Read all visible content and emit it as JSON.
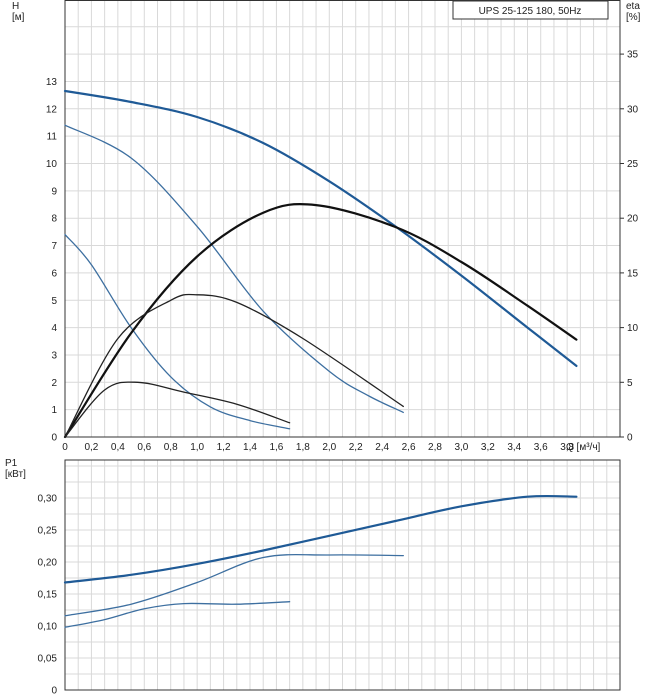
{
  "chart_data": [
    {
      "type": "line",
      "title": "UPS 25-125 180, 50Hz",
      "xlabel": "Q [м³/ч]",
      "ylabel": "H\n[м]",
      "y2label": "eta\n[%]",
      "xlim": [
        0,
        4.2
      ],
      "ylim": [
        0,
        16
      ],
      "y2lim": [
        0,
        40
      ],
      "x_ticks": [
        "0",
        "0,2",
        "0,4",
        "0,6",
        "0,8",
        "1,0",
        "1,2",
        "1,4",
        "1,6",
        "1,8",
        "2,0",
        "2,2",
        "2,4",
        "2,6",
        "2,8",
        "3,0",
        "3,2",
        "3,4",
        "3,6",
        "3,8"
      ],
      "y_ticks": [
        "0",
        "1",
        "2",
        "3",
        "4",
        "5",
        "6",
        "7",
        "8",
        "9",
        "10",
        "11",
        "12",
        "13"
      ],
      "y2_ticks": [
        "0",
        "5",
        "10",
        "15",
        "20",
        "25",
        "30",
        "35"
      ],
      "grid": true,
      "series": [
        {
          "axis": "H",
          "color": "#1f5a96",
          "x": [
            0,
            0.5,
            1,
            1.5,
            2,
            2.5,
            3,
            3.5,
            3.87
          ],
          "y": [
            12.65,
            12.25,
            11.7,
            10.75,
            9.35,
            7.7,
            5.9,
            4.0,
            2.6
          ]
        },
        {
          "axis": "H",
          "color": "#3d6fa0",
          "x": [
            0,
            0.5,
            1,
            1.5,
            2,
            2.3,
            2.56
          ],
          "y": [
            11.4,
            10.2,
            7.7,
            4.6,
            2.4,
            1.5,
            0.9
          ]
        },
        {
          "axis": "H",
          "color": "#3d6fa0",
          "x": [
            0,
            0.2,
            0.5,
            0.8,
            1.1,
            1.4,
            1.7
          ],
          "y": [
            7.4,
            6.3,
            4.0,
            2.2,
            1.1,
            0.6,
            0.3
          ]
        },
        {
          "axis": "eta",
          "color": "#111111",
          "x": [
            0,
            0.5,
            1,
            1.5,
            1.9,
            2.5,
            3,
            3.5,
            3.87
          ],
          "y": [
            0,
            9.5,
            16.5,
            20.5,
            21.2,
            19.2,
            16,
            12,
            8.9
          ]
        },
        {
          "axis": "eta",
          "color": "#222222",
          "x": [
            0,
            0.4,
            0.8,
            1,
            1.3,
            1.8,
            2.56
          ],
          "y": [
            0,
            9,
            12.5,
            13,
            12.3,
            9,
            2.8
          ]
        },
        {
          "axis": "eta",
          "color": "#222222",
          "x": [
            0,
            0.3,
            0.55,
            0.9,
            1.3,
            1.7
          ],
          "y": [
            0,
            4.3,
            5,
            4.1,
            3.0,
            1.3
          ]
        }
      ]
    },
    {
      "type": "line",
      "ylabel": "P1\n[кВт]",
      "xlim": [
        0,
        4.2
      ],
      "ylim": [
        0,
        0.35
      ],
      "y_ticks": [
        "0",
        "0,05",
        "0,10",
        "0,15",
        "0,20",
        "0,25",
        "0,30"
      ],
      "grid": true,
      "series": [
        {
          "color": "#1f5a96",
          "x": [
            0,
            0.5,
            1,
            1.5,
            2,
            2.5,
            3,
            3.5,
            3.87
          ],
          "y": [
            0.168,
            0.18,
            0.197,
            0.218,
            0.241,
            0.264,
            0.287,
            0.302,
            0.302
          ]
        },
        {
          "color": "#3d6fa0",
          "x": [
            0,
            0.5,
            1,
            1.5,
            2,
            2.56
          ],
          "y": [
            0.116,
            0.134,
            0.168,
            0.207,
            0.211,
            0.21
          ]
        },
        {
          "color": "#3d6fa0",
          "x": [
            0,
            0.3,
            0.6,
            0.9,
            1.3,
            1.7
          ],
          "y": [
            0.098,
            0.11,
            0.127,
            0.135,
            0.134,
            0.138
          ]
        }
      ]
    }
  ]
}
